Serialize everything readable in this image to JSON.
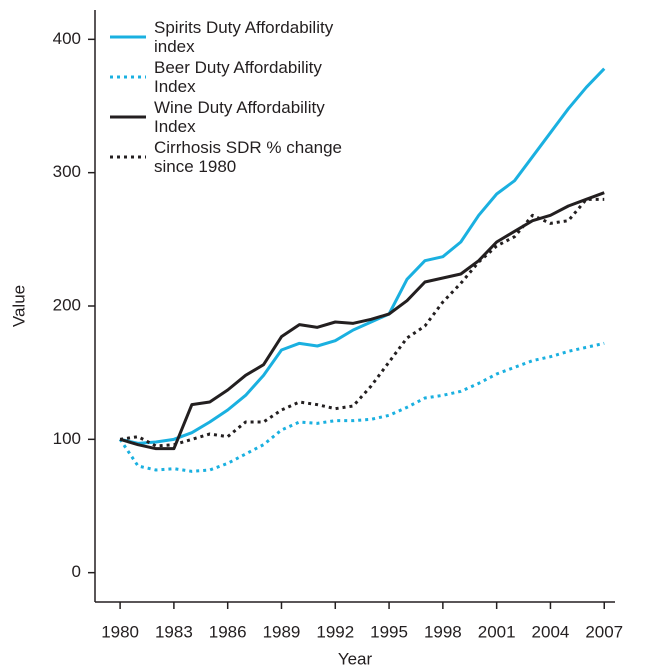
{
  "chart_data": {
    "type": "line",
    "x_label": "Year",
    "y_label": "Value",
    "x": [
      1980,
      1981,
      1982,
      1983,
      1984,
      1985,
      1986,
      1987,
      1988,
      1989,
      1990,
      1991,
      1992,
      1993,
      1994,
      1995,
      1996,
      1997,
      1998,
      1999,
      2000,
      2001,
      2002,
      2003,
      2004,
      2005,
      2006,
      2007
    ],
    "series": [
      {
        "name": "Spirits Duty Affordability index",
        "color": "#1ab0e0",
        "style": "solid",
        "values": [
          100,
          97,
          98,
          100,
          105,
          113,
          122,
          133,
          148,
          167,
          172,
          170,
          174,
          182,
          188,
          194,
          220,
          234,
          237,
          248,
          268,
          284,
          294,
          312,
          330,
          348,
          364,
          378
        ]
      },
      {
        "name": "Beer Duty Affordability Index",
        "color": "#1ab0e0",
        "style": "dotted",
        "values": [
          100,
          80,
          77,
          78,
          76,
          77,
          82,
          89,
          96,
          107,
          113,
          112,
          114,
          114,
          115,
          118,
          124,
          131,
          133,
          136,
          142,
          149,
          154,
          159,
          162,
          166,
          169,
          172
        ]
      },
      {
        "name": "Wine Duty Affordability Index",
        "color": "#231f20",
        "style": "solid",
        "values": [
          100,
          96,
          93,
          93,
          126,
          128,
          137,
          148,
          156,
          177,
          186,
          184,
          188,
          187,
          190,
          194,
          204,
          218,
          221,
          224,
          234,
          248,
          256,
          264,
          268,
          275,
          280,
          285
        ]
      },
      {
        "name": "Cirrhosis SDR % change since 1980",
        "color": "#231f20",
        "style": "dotted",
        "values": [
          100,
          102,
          95,
          96,
          100,
          104,
          102,
          113,
          113,
          122,
          128,
          126,
          123,
          125,
          140,
          158,
          176,
          185,
          203,
          217,
          233,
          245,
          252,
          268,
          262,
          264,
          280,
          280
        ]
      }
    ],
    "xlim": [
      1978.6,
      2007.6
    ],
    "xticks": [
      1980,
      1983,
      1986,
      1989,
      1992,
      1995,
      1998,
      2001,
      2004,
      2007
    ],
    "ylim": [
      -22,
      422
    ],
    "yticks": [
      0,
      100,
      200,
      300,
      400
    ],
    "legend": "upper left",
    "grid": false
  }
}
